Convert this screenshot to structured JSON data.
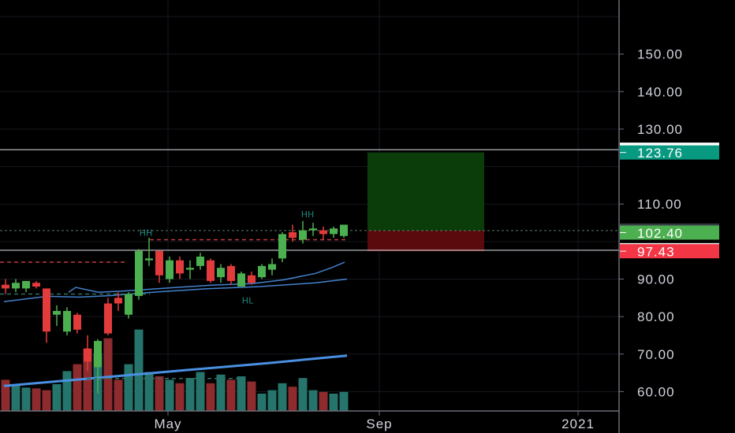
{
  "chart_data": {
    "type": "candlestick",
    "ylim": [
      52,
      164
    ],
    "y_ticks": [
      "60.00",
      "70.00",
      "80.00",
      "90.00",
      "110.00",
      "130.00",
      "140.00",
      "150.00"
    ],
    "x_tick_labels": [
      "May",
      "Sep",
      "2021"
    ],
    "candles": [
      {
        "o": 88.5,
        "h": 90.0,
        "l": 86.0,
        "c": 87.5
      },
      {
        "o": 87.5,
        "h": 90.0,
        "l": 86.5,
        "c": 89.0
      },
      {
        "o": 87.5,
        "h": 89.5,
        "l": 86.5,
        "c": 89.5
      },
      {
        "o": 89.0,
        "h": 89.5,
        "l": 87.5,
        "c": 88.0
      },
      {
        "o": 87.5,
        "h": 87.5,
        "l": 73.0,
        "c": 76.0
      },
      {
        "o": 80.5,
        "h": 83.0,
        "l": 77.5,
        "c": 81.5
      },
      {
        "o": 76.0,
        "h": 82.5,
        "l": 75.0,
        "c": 81.5
      },
      {
        "o": 80.5,
        "h": 81.0,
        "l": 75.5,
        "c": 76.5
      },
      {
        "o": 71.5,
        "h": 75.0,
        "l": 65.5,
        "c": 68.0
      },
      {
        "o": 66.5,
        "h": 74.0,
        "l": 59.5,
        "c": 73.5
      },
      {
        "o": 83.5,
        "h": 85.0,
        "l": 75.0,
        "c": 75.5
      },
      {
        "o": 85.0,
        "h": 86.5,
        "l": 81.5,
        "c": 83.5
      },
      {
        "o": 80.5,
        "h": 86.5,
        "l": 79.5,
        "c": 86.0
      },
      {
        "o": 85.5,
        "h": 98.0,
        "l": 84.5,
        "c": 97.5
      },
      {
        "o": 95.0,
        "h": 101.0,
        "l": 93.5,
        "c": 95.5
      },
      {
        "o": 97.5,
        "h": 97.5,
        "l": 89.0,
        "c": 91.0
      },
      {
        "o": 90.0,
        "h": 96.0,
        "l": 89.0,
        "c": 95.0
      },
      {
        "o": 95.0,
        "h": 96.0,
        "l": 90.0,
        "c": 91.5
      },
      {
        "o": 92.5,
        "h": 95.0,
        "l": 90.0,
        "c": 93.0
      },
      {
        "o": 93.5,
        "h": 97.0,
        "l": 92.5,
        "c": 96.0
      },
      {
        "o": 95.0,
        "h": 95.5,
        "l": 89.0,
        "c": 89.5
      },
      {
        "o": 90.5,
        "h": 94.0,
        "l": 89.0,
        "c": 93.0
      },
      {
        "o": 93.5,
        "h": 94.0,
        "l": 88.5,
        "c": 89.5
      },
      {
        "o": 88.0,
        "h": 92.0,
        "l": 88.0,
        "c": 91.5
      },
      {
        "o": 91.0,
        "h": 92.0,
        "l": 88.5,
        "c": 89.0
      },
      {
        "o": 90.5,
        "h": 94.0,
        "l": 90.0,
        "c": 93.5
      },
      {
        "o": 92.5,
        "h": 95.5,
        "l": 91.0,
        "c": 94.0
      },
      {
        "o": 95.5,
        "h": 102.5,
        "l": 94.5,
        "c": 102.0
      },
      {
        "o": 102.5,
        "h": 104.5,
        "l": 100.0,
        "c": 101.0
      },
      {
        "o": 100.5,
        "h": 105.5,
        "l": 99.5,
        "c": 103.0
      },
      {
        "o": 103.0,
        "h": 105.0,
        "l": 101.5,
        "c": 103.5
      },
      {
        "o": 103.0,
        "h": 104.0,
        "l": 100.5,
        "c": 102.0
      },
      {
        "o": 102.0,
        "h": 104.0,
        "l": 101.0,
        "c": 103.5
      },
      {
        "o": 101.5,
        "h": 104.5,
        "l": 101.0,
        "c": 104.5
      }
    ],
    "volume_rel": [
      0.36,
      0.31,
      0.27,
      0.26,
      0.24,
      0.31,
      0.46,
      0.54,
      0.72,
      0.66,
      0.84,
      0.36,
      0.54,
      0.94,
      0.45,
      0.4,
      0.36,
      0.32,
      0.38,
      0.45,
      0.32,
      0.42,
      0.36,
      0.4,
      0.34,
      0.2,
      0.24,
      0.32,
      0.28,
      0.38,
      0.24,
      0.22,
      0.2,
      0.22
    ],
    "ma_lines": [
      {
        "name": "",
        "points": [
          [
            87,
            86.5
          ],
          [
            96,
            87.8
          ],
          [
            125,
            86.5
          ],
          [
            155,
            86.8
          ],
          [
            185,
            87.2
          ],
          [
            225,
            87.8
          ],
          [
            270,
            88.4
          ],
          [
            320,
            88.8
          ],
          [
            360,
            89.8
          ],
          [
            400,
            91.5
          ],
          [
            420,
            93.0
          ],
          [
            437,
            94.5
          ]
        ]
      },
      {
        "name": "",
        "points": [
          [
            5,
            84.0
          ],
          [
            60,
            85.4
          ],
          [
            100,
            85.2
          ],
          [
            140,
            85.6
          ],
          [
            200,
            86.6
          ],
          [
            260,
            87.4
          ],
          [
            330,
            88.0
          ],
          [
            400,
            89.0
          ],
          [
            440,
            90.0
          ]
        ]
      },
      {
        "name": "",
        "points": [
          [
            5,
            61.5
          ],
          [
            120,
            63.6
          ],
          [
            240,
            65.8
          ],
          [
            340,
            67.6
          ],
          [
            440,
            69.6
          ]
        ],
        "thick": true
      }
    ],
    "horizontal_levels": [
      {
        "value": 124.5,
        "label": "124.50",
        "bg": "#ffffff",
        "fg": "#131722"
      },
      {
        "value": 123.76,
        "label": "123.76",
        "bg": "#089981",
        "fg": "#ffffff"
      },
      {
        "value": 102.94,
        "label": "102.94",
        "bg": "#363a45",
        "fg": "#ffffff"
      },
      {
        "value": 102.4,
        "label": "102.40",
        "bg": "#4caf50",
        "fg": "#ffffff"
      },
      {
        "value": 97.69,
        "label": "97.69",
        "bg": "#ffffff",
        "fg": "#131722"
      },
      {
        "value": 97.43,
        "label": "97.43",
        "bg": "#f23645",
        "fg": "#ffffff"
      }
    ],
    "position_box": {
      "entry": 102.94,
      "target": 123.76,
      "stop": 97.43
    },
    "annotations": [
      {
        "text": "HH",
        "x": 185,
        "v": 101.5
      },
      {
        "text": "HH",
        "x": 390,
        "v": 106.5
      },
      {
        "text": "HL",
        "x": 314,
        "v": 83.5
      }
    ],
    "colors": {
      "up": "#4caf50",
      "down": "#e23b3b",
      "vol_up": "#26756c",
      "vol_down": "#8e2b2e",
      "ma": "#4a90e2",
      "axis_text": "#d1d4dc",
      "profit_zone": "#0b3d0b",
      "loss_zone": "#5a0a0d"
    }
  }
}
